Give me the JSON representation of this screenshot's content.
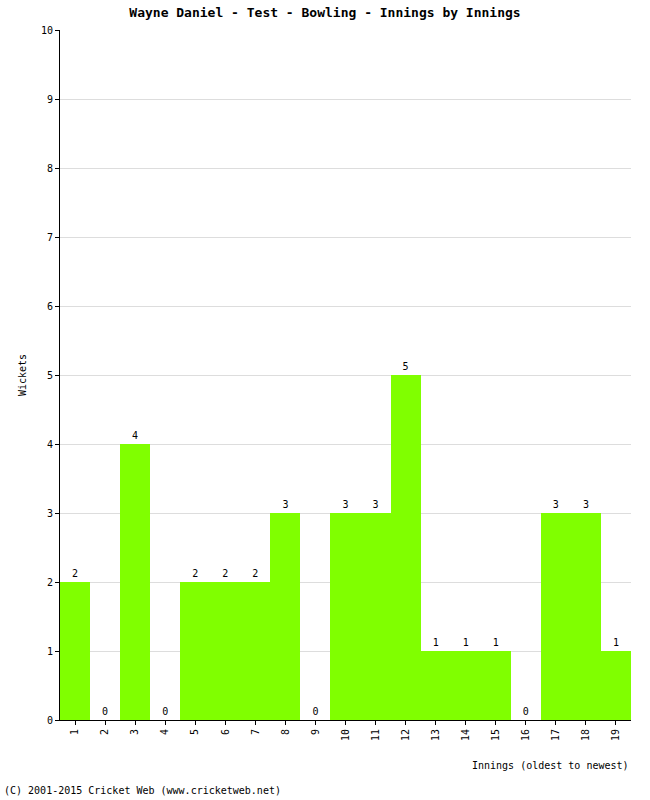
{
  "chart_data": {
    "type": "bar",
    "title": "Wayne Daniel - Test - Bowling - Innings by Innings",
    "x_label": "Innings (oldest to newest)",
    "y_label": "Wickets",
    "annotations": [
      "(C) 2001-2015 Cricket Web (www.cricketweb.net)"
    ],
    "categories": [
      "1",
      "2",
      "3",
      "4",
      "5",
      "6",
      "7",
      "8",
      "9",
      "10",
      "11",
      "12",
      "13",
      "14",
      "15",
      "16",
      "17",
      "18",
      "19"
    ],
    "values": [
      2,
      0,
      4,
      0,
      2,
      2,
      2,
      3,
      0,
      3,
      3,
      5,
      1,
      1,
      1,
      0,
      3,
      3,
      1
    ],
    "color": "#80ff00",
    "ylim": [
      0,
      10
    ],
    "yticks": [
      0,
      1,
      2,
      3,
      4,
      5,
      6,
      7,
      8,
      9,
      10
    ],
    "grid": true,
    "data_labels": true
  }
}
